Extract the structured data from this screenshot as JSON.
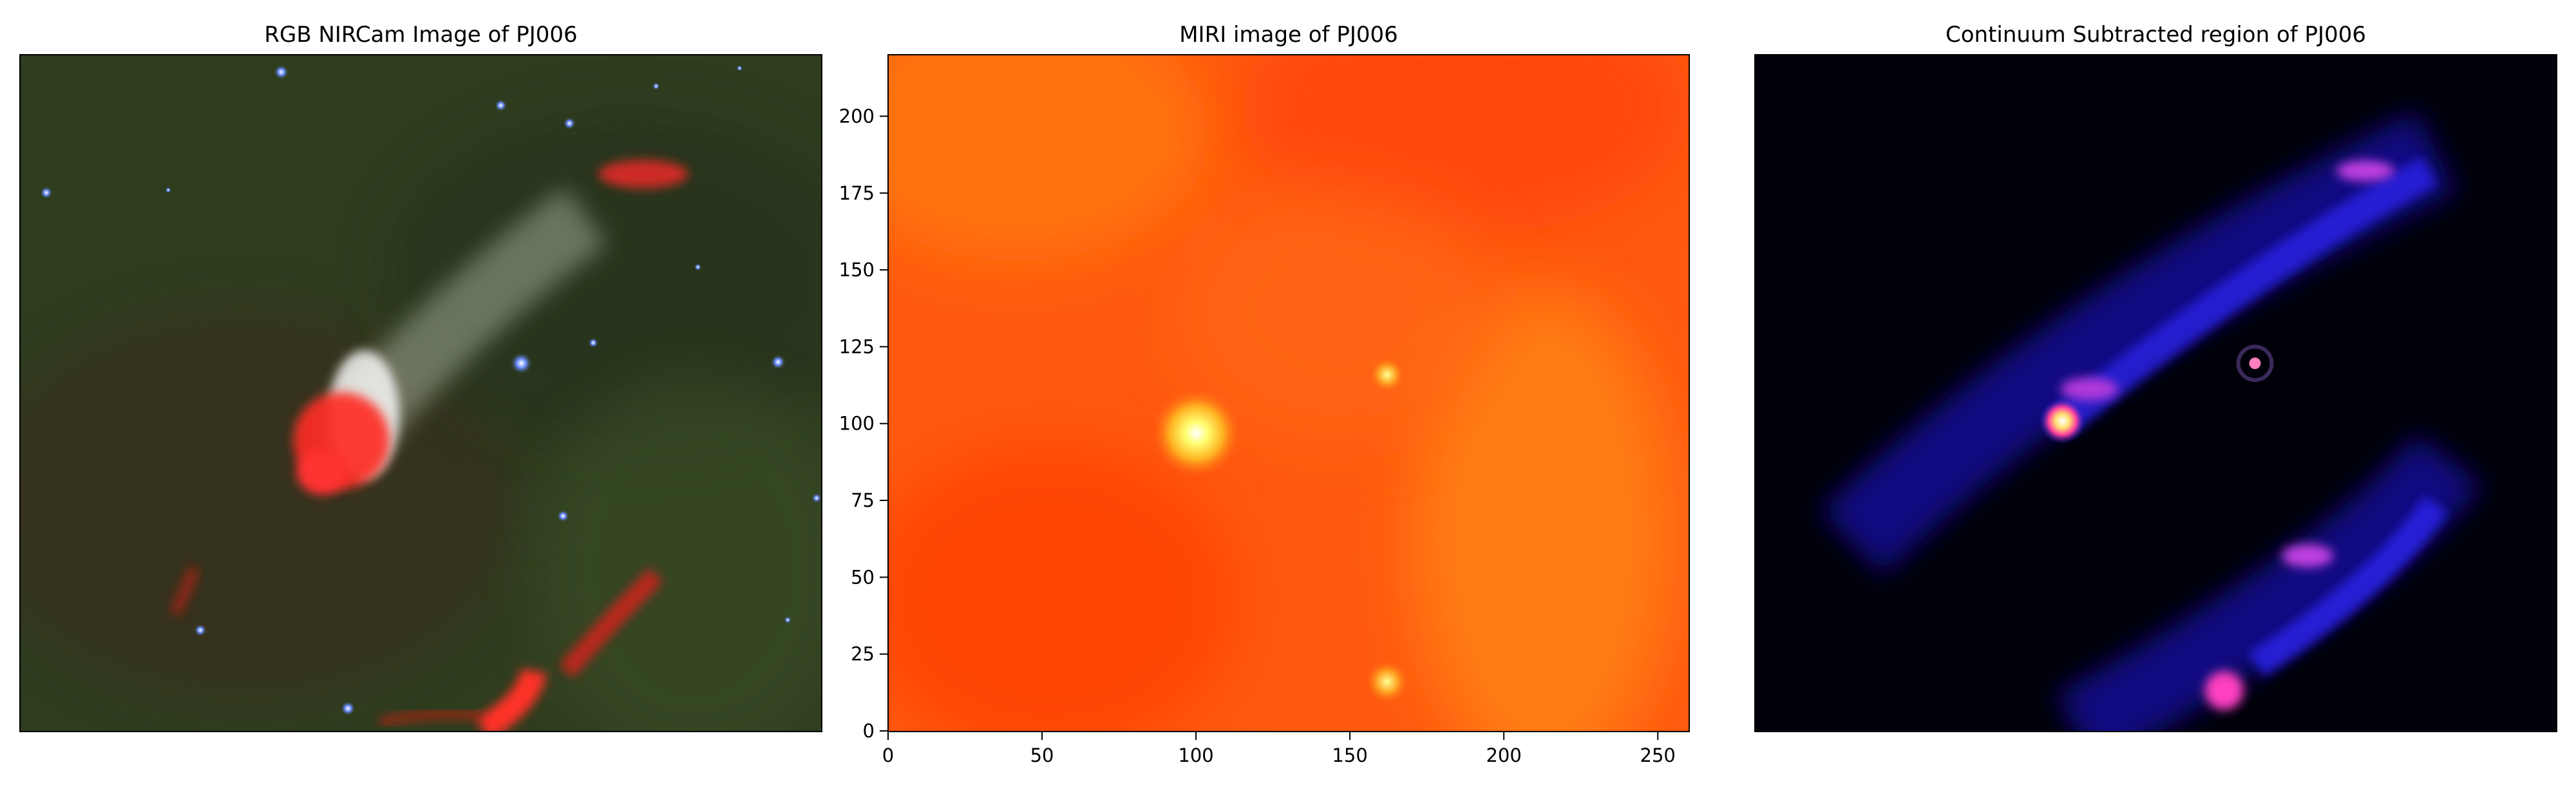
{
  "panels": [
    {
      "title": "RGB NIRCam Image of PJ006"
    },
    {
      "title": "MIRI image of PJ006"
    },
    {
      "title": "Continuum Subtracted region of PJ006"
    }
  ],
  "chart_data": {
    "type": "heatmap",
    "title": "MIRI image of PJ006",
    "xlim": [
      0,
      260
    ],
    "ylim": [
      0,
      220
    ],
    "x_ticks": [
      "0",
      "50",
      "100",
      "150",
      "200",
      "250"
    ],
    "y_ticks": [
      "0",
      "25",
      "50",
      "75",
      "100",
      "125",
      "150",
      "175",
      "200"
    ],
    "colormap": "hot",
    "bright_sources": [
      {
        "x": 100,
        "y": 97
      },
      {
        "x": 162,
        "y": 116
      },
      {
        "x": 162,
        "y": 16
      }
    ]
  },
  "colors": {
    "nircam_background": "#2f3d1f",
    "nircam_emission": "#e0261d",
    "miri_background": "#ff5a10",
    "miri_peak": "#ffff80",
    "continuum_background": "#000008",
    "continuum_emission": "#2a22e8",
    "continuum_peak": "#ff40c0"
  }
}
